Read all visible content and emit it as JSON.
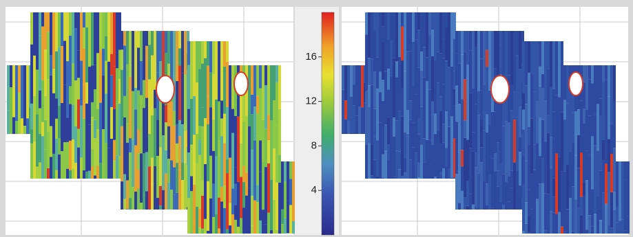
{
  "chart_data": {
    "type": "colorbar",
    "ylim": [
      0,
      20
    ],
    "yticks": [
      4,
      8,
      12,
      16
    ]
  }
}
